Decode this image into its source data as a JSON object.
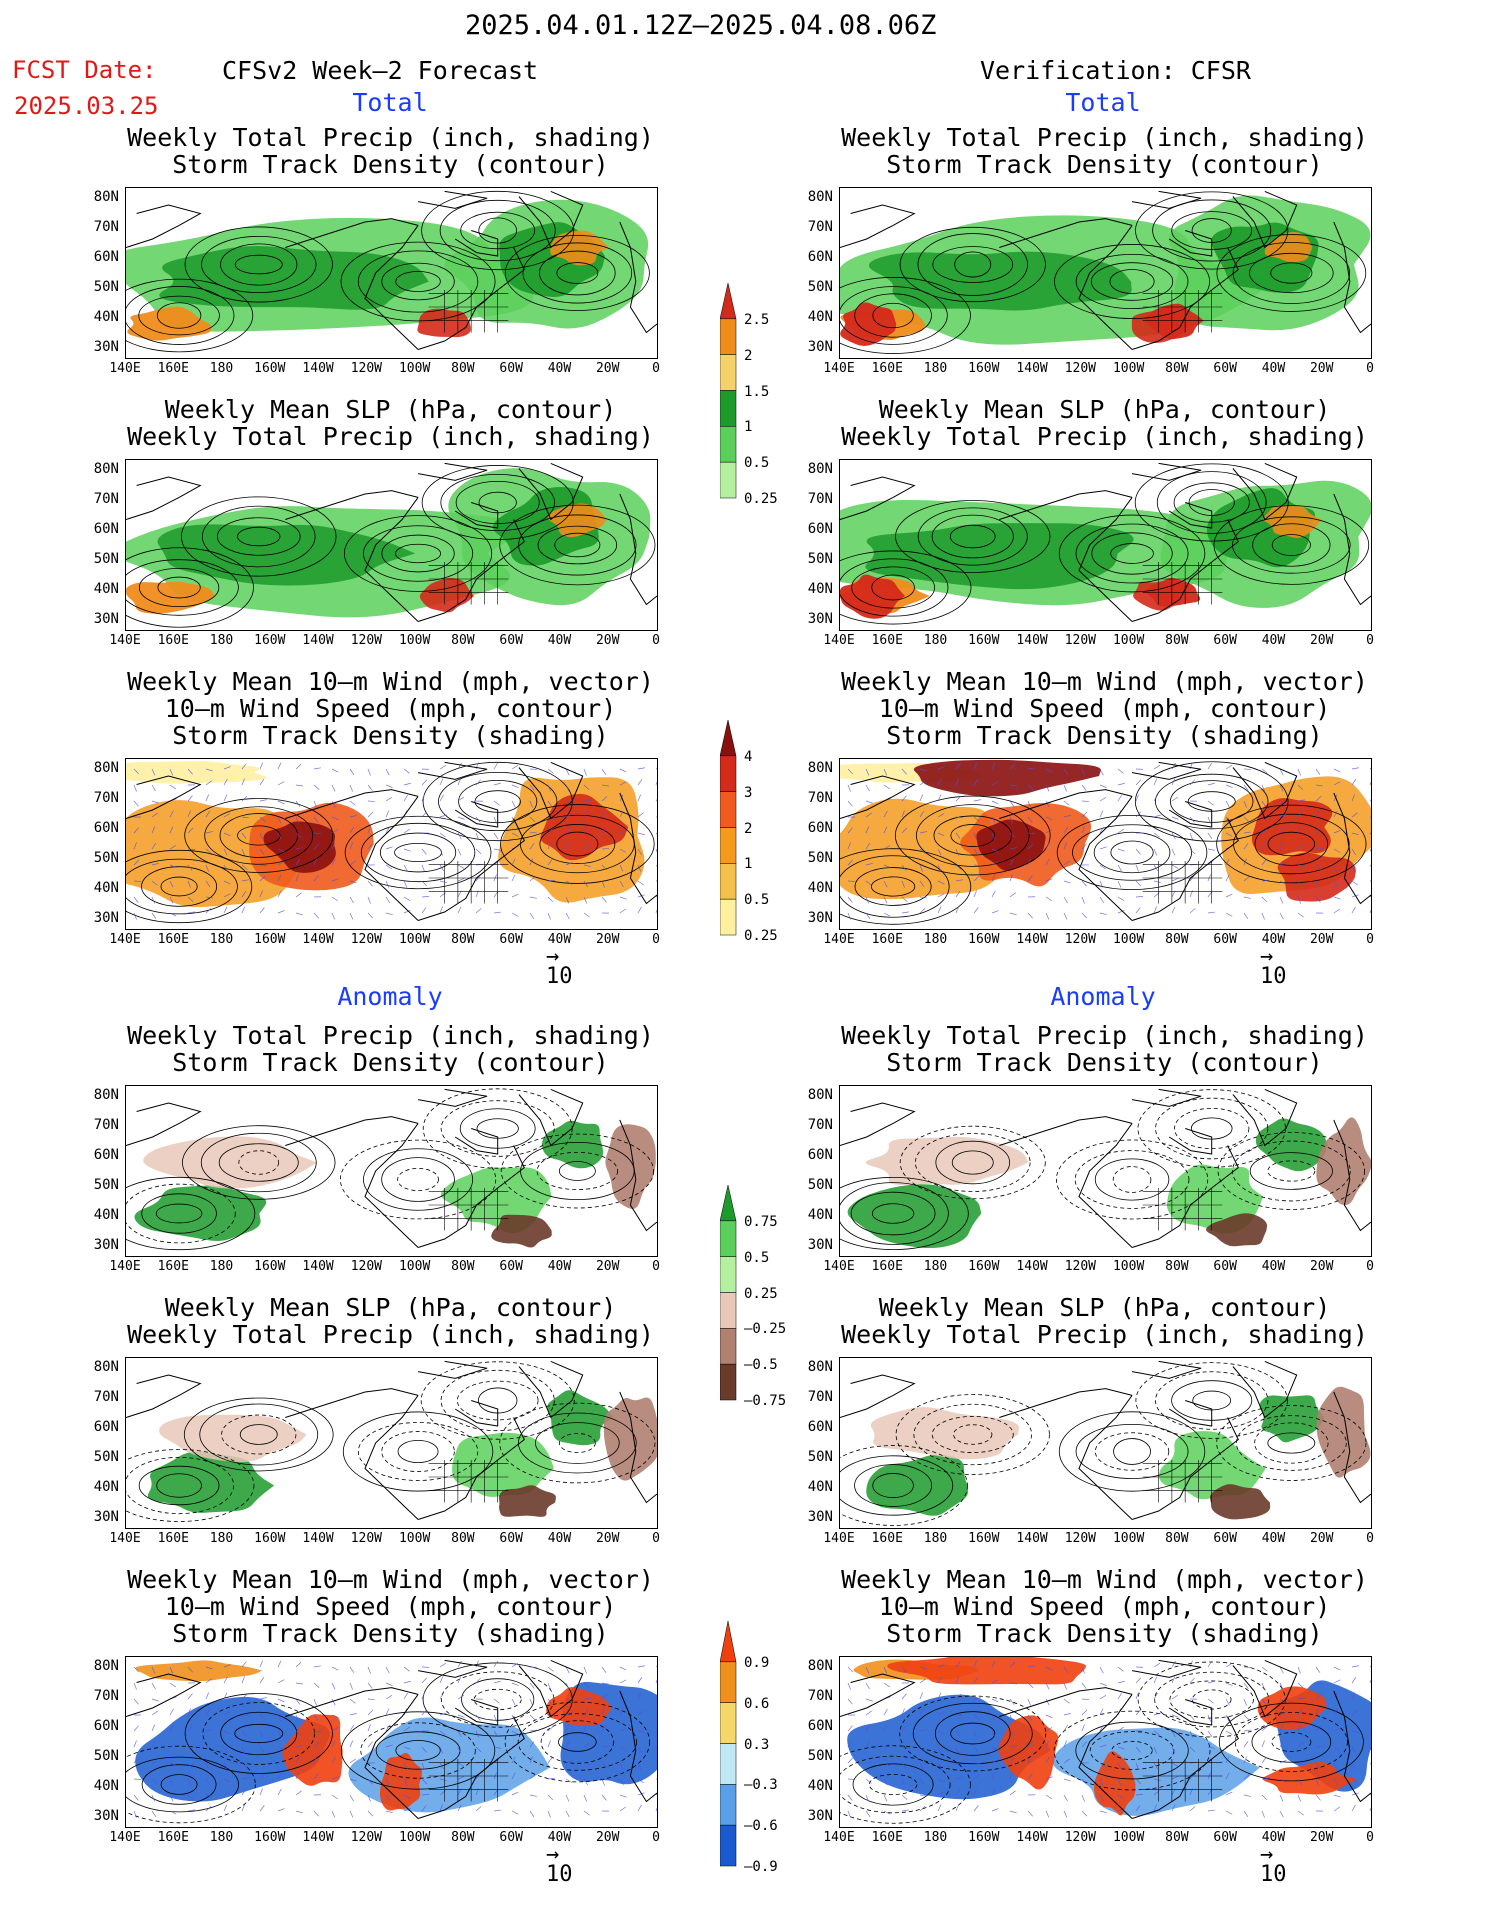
{
  "header": {
    "date_range": "2025.04.01.12Z—2025.04.08.06Z",
    "fcst_label": "FCST Date:",
    "fcst_date": "2025.03.25",
    "left_header": "CFSv2 Week—2 Forecast",
    "right_header": "Verification: CFSR"
  },
  "sections": {
    "total": "Total",
    "anomaly": "Anomaly"
  },
  "panel_titles": {
    "precip_storm": [
      "Weekly Total Precip (inch, shading)",
      "Storm Track Density (contour)"
    ],
    "slp_precip": [
      "Weekly Mean SLP (hPa, contour)",
      "Weekly Total Precip (inch, shading)"
    ],
    "wind_storm": [
      "Weekly Mean 10—m Wind (mph, vector)",
      "10—m Wind Speed (mph, contour)",
      "Storm Track Density (shading)"
    ]
  },
  "axes": {
    "lat_labels": [
      "80N",
      "70N",
      "60N",
      "50N",
      "40N",
      "30N"
    ],
    "lon_labels": [
      "140E",
      "160E",
      "180",
      "160W",
      "140W",
      "120W",
      "100W",
      "80W",
      "60W",
      "40W",
      "20W",
      "0"
    ]
  },
  "vector_reference": "10",
  "colorbars": {
    "precip_total": {
      "labels": [
        "2.5",
        "2",
        "1.5",
        "1",
        "0.5",
        "0.25"
      ],
      "colors": [
        "#d42a1a",
        "#f08c1c",
        "#f5d16a",
        "#1c9a2a",
        "#5ad05a",
        "#b4f0a0"
      ]
    },
    "storm_total": {
      "labels": [
        "4",
        "3",
        "2",
        "1",
        "0.5",
        "0.25"
      ],
      "colors": [
        "#8a1010",
        "#d42a1a",
        "#f05a1c",
        "#f59a1c",
        "#f5c04a",
        "#fff0a0"
      ]
    },
    "precip_anom": {
      "labels": [
        "0.75",
        "0.5",
        "0.25",
        "—0.25",
        "—0.5",
        "—0.75"
      ],
      "colors": [
        "#1c9a2a",
        "#5ad05a",
        "#b4f0a0",
        "#e8c8b8",
        "#b08070",
        "#6a3a2a"
      ]
    },
    "storm_anom": {
      "labels": [
        "0.9",
        "0.6",
        "0.3",
        "—0.3",
        "—0.6",
        "—0.9"
      ],
      "colors": [
        "#f04010",
        "#f0901c",
        "#f5d86a",
        "#c0e8f5",
        "#5aa0e8",
        "#1a5ad0"
      ]
    },
    "colors_note": "legend colors"
  },
  "colors": {
    "land_line": "#000000",
    "vector": "#5050e0",
    "highlight_red": "#e01818",
    "highlight_blue": "#1a3cff"
  }
}
